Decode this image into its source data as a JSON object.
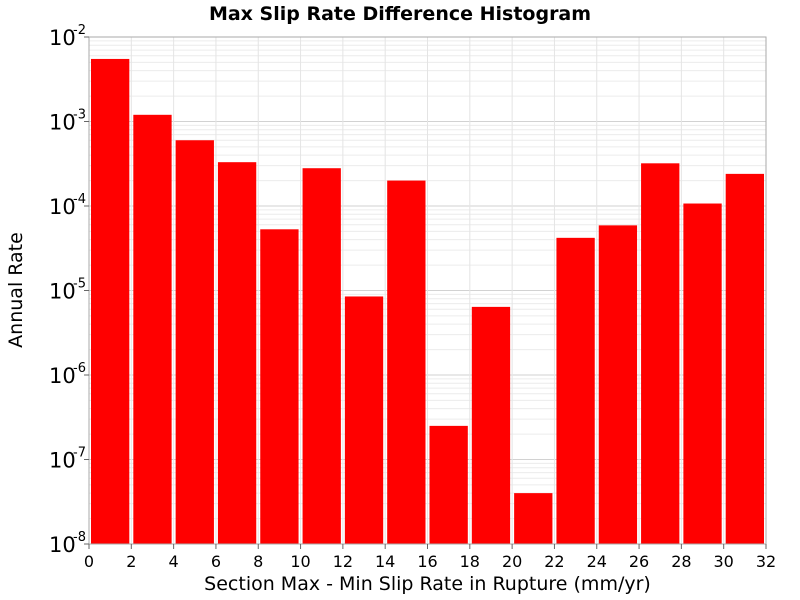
{
  "chart_data": {
    "type": "bar",
    "title": "Max Slip Rate Difference Histogram",
    "xlabel": "Section Max - Min Slip Rate in Rupture (mm/yr)",
    "ylabel": "Annual Rate",
    "xlim": [
      0,
      32
    ],
    "ylim": [
      1e-08,
      0.01
    ],
    "y_scale": "log",
    "grid": true,
    "legend": "none",
    "bar_color": "#ff0000",
    "x_ticks": [
      0,
      2,
      4,
      6,
      8,
      10,
      12,
      14,
      16,
      18,
      20,
      22,
      24,
      26,
      28,
      30,
      32
    ],
    "y_tick_exponents": [
      "-8",
      "-7",
      "-6",
      "-5",
      "-4",
      "-3",
      "-2"
    ],
    "y_tick_base": "10",
    "bin_width": 2,
    "bins": [
      {
        "x": 1,
        "y": 0.0055
      },
      {
        "x": 3,
        "y": 0.0012
      },
      {
        "x": 5,
        "y": 0.0006
      },
      {
        "x": 7,
        "y": 0.00033
      },
      {
        "x": 9,
        "y": 5.3e-05
      },
      {
        "x": 11,
        "y": 0.00028
      },
      {
        "x": 13,
        "y": 8.5e-06
      },
      {
        "x": 15,
        "y": 0.0002
      },
      {
        "x": 17,
        "y": 2.5e-07
      },
      {
        "x": 19,
        "y": 6.4e-06
      },
      {
        "x": 21,
        "y": 4e-08
      },
      {
        "x": 23,
        "y": 4.2e-05
      },
      {
        "x": 25,
        "y": 5.9e-05
      },
      {
        "x": 27,
        "y": 0.00032
      },
      {
        "x": 29,
        "y": 0.000107
      },
      {
        "x": 31,
        "y": 0.00024
      }
    ]
  }
}
